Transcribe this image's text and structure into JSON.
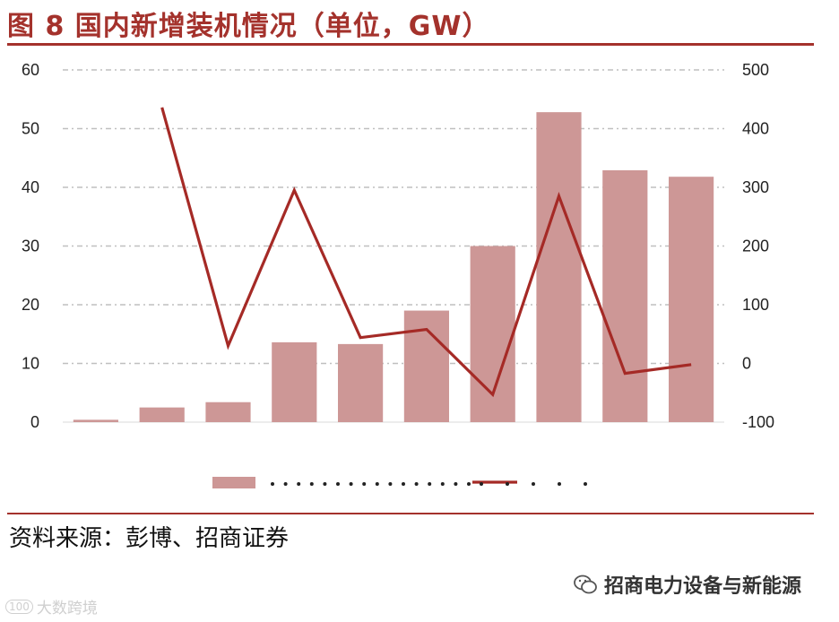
{
  "header": {
    "title": "图 8  国内新增装机情况（单位，GW）"
  },
  "footer": {
    "source": "资料来源：彭博、招商证券",
    "watermark_name": "招商电力设备与新能源",
    "corner_watermark": "大数跨境",
    "corner_logo_text": "100"
  },
  "colors": {
    "bar": "#cd9796",
    "line": "#a52a26",
    "rule": "#a4322c",
    "grid": "#bfbfbf"
  },
  "chart_data": {
    "type": "bar",
    "title": "",
    "xlabel": "",
    "ylabel": "",
    "categories": [
      "",
      "",
      "",
      "",
      "",
      "",
      "",
      "",
      "",
      ""
    ],
    "series": [
      {
        "type": "bar",
        "axis": "left",
        "values": [
          0.4,
          2.5,
          3.4,
          13.6,
          13.3,
          19,
          30,
          52.8,
          42.9,
          41.8
        ]
      },
      {
        "type": "line",
        "axis": "right",
        "values": [
          null,
          436,
          30,
          295,
          44,
          58,
          -53,
          285,
          -17,
          -2
        ]
      }
    ],
    "ylim": [
      0,
      60
    ],
    "yticks": [
      "0",
      "10",
      "20",
      "30",
      "40",
      "50",
      "60"
    ],
    "y2lim": [
      -100,
      500
    ],
    "y2ticks": [
      "-100",
      "0",
      "100",
      "200",
      "300",
      "400",
      "500"
    ],
    "grid": true,
    "legend": {
      "placement": "bottom-center"
    }
  }
}
